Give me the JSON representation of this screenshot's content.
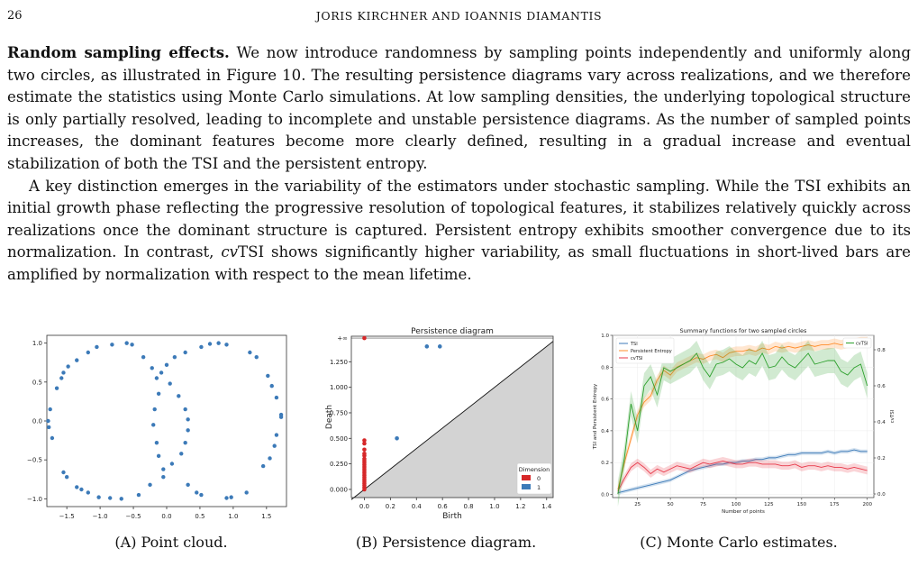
{
  "header": {
    "page_number": "26",
    "running_title": "JORIS KIRCHNER AND IOANNIS DIAMANTIS"
  },
  "body": {
    "paragraph1_runin": "Random sampling effects.",
    "paragraph1_text": " We now introduce randomness by sampling points independently and uniformly along two circles, as illustrated in Figure 10. The resulting persistence diagrams vary across realizations, and we therefore estimate the statistics using Monte Carlo simulations. At low sampling densities, the underlying topological structure is only partially resolved, leading to incomplete and unstable persistence diagrams. As the number of sampled points increases, the dominant features become more clearly defined, resulting in a gradual increase and eventual stabilization of both the TSI and the persistent entropy.",
    "paragraph2_a": "A key distinction emerges in the variability of the estimators under stochastic sampling. While the TSI exhibits an initial growth phase reflecting the progressive resolution of topological features, it stabilizes relatively quickly across realizations once the dominant structure is captured. Persistent entropy exhibits smoother convergence due to its normalization. In contrast, ",
    "paragraph2_em": "cv",
    "paragraph2_b": "TSI shows significantly higher variability, as small fluctuations in short-lived bars are amplified by normalization with respect to the mean lifetime."
  },
  "captions": {
    "a_label": "(A)",
    "a_text": " Point cloud.",
    "b_label": "(B)",
    "b_text": " Persistence diagram.",
    "c_label": "(C)",
    "c_text": " Monte Carlo estimates."
  },
  "chart_data": [
    {
      "type": "scatter",
      "xlim": [
        -1.8,
        1.8
      ],
      "ylim": [
        -1.1,
        1.1
      ],
      "xticks": [
        "−1.5",
        "−1.0",
        "−0.5",
        "0.0",
        "0.5",
        "1.0",
        "1.5"
      ],
      "yticks": [
        "1.0",
        "0.5",
        "0.0",
        "−0.5",
        "−1.0"
      ],
      "grid": false,
      "point_color": "#3c7ab8",
      "points": [
        [
          -1.75,
          0.15
        ],
        [
          -1.78,
          0.0
        ],
        [
          -1.77,
          -0.08
        ],
        [
          -1.72,
          -0.22
        ],
        [
          -1.65,
          0.42
        ],
        [
          -1.58,
          0.55
        ],
        [
          -1.55,
          0.62
        ],
        [
          -1.48,
          0.7
        ],
        [
          -1.35,
          0.78
        ],
        [
          -1.18,
          0.88
        ],
        [
          -1.05,
          0.95
        ],
        [
          -0.82,
          0.98
        ],
        [
          -0.6,
          1.0
        ],
        [
          -0.52,
          0.98
        ],
        [
          -0.35,
          0.82
        ],
        [
          -0.22,
          0.68
        ],
        [
          -0.15,
          0.55
        ],
        [
          -0.12,
          0.35
        ],
        [
          -0.18,
          0.15
        ],
        [
          -0.2,
          -0.05
        ],
        [
          -0.15,
          -0.28
        ],
        [
          -0.12,
          -0.45
        ],
        [
          -0.05,
          -0.62
        ],
        [
          -0.25,
          -0.82
        ],
        [
          -0.42,
          -0.95
        ],
        [
          -0.68,
          -1.0
        ],
        [
          -0.85,
          -0.99
        ],
        [
          -1.02,
          -0.98
        ],
        [
          -1.18,
          -0.92
        ],
        [
          -1.28,
          -0.88
        ],
        [
          -1.35,
          -0.85
        ],
        [
          -1.5,
          -0.72
        ],
        [
          -1.55,
          -0.66
        ],
        [
          0.12,
          0.82
        ],
        [
          0.0,
          0.72
        ],
        [
          -0.08,
          0.62
        ],
        [
          0.05,
          0.48
        ],
        [
          0.18,
          0.32
        ],
        [
          0.28,
          0.15
        ],
        [
          0.32,
          0.02
        ],
        [
          0.32,
          -0.12
        ],
        [
          0.28,
          -0.28
        ],
        [
          0.22,
          -0.42
        ],
        [
          0.08,
          -0.55
        ],
        [
          -0.05,
          -0.72
        ],
        [
          0.32,
          -0.82
        ],
        [
          0.45,
          -0.92
        ],
        [
          0.52,
          -0.95
        ],
        [
          0.9,
          -0.99
        ],
        [
          0.97,
          -0.98
        ],
        [
          1.2,
          -0.92
        ],
        [
          1.45,
          -0.58
        ],
        [
          1.55,
          -0.48
        ],
        [
          1.62,
          -0.32
        ],
        [
          1.65,
          -0.18
        ],
        [
          1.72,
          0.05
        ],
        [
          1.72,
          0.08
        ],
        [
          1.65,
          0.3
        ],
        [
          1.58,
          0.45
        ],
        [
          1.52,
          0.58
        ],
        [
          1.35,
          0.82
        ],
        [
          1.25,
          0.88
        ],
        [
          0.9,
          0.98
        ],
        [
          0.78,
          1.0
        ],
        [
          0.65,
          0.99
        ],
        [
          0.52,
          0.95
        ],
        [
          0.28,
          0.88
        ]
      ]
    },
    {
      "type": "scatter",
      "title": "Persistence diagram",
      "xlabel": "Birth",
      "ylabel": "Death",
      "xlim": [
        -0.1,
        1.45
      ],
      "ylim": [
        -0.08,
        1.5
      ],
      "xticks": [
        "0.0",
        "0.2",
        "0.4",
        "0.6",
        "0.8",
        "1.0",
        "1.2",
        "1.4"
      ],
      "yticks": [
        "+∞",
        "1.250",
        "1.000",
        "0.750",
        "0.500",
        "0.250",
        "0.000"
      ],
      "infinity_label": "+∞",
      "legend_title": "Dimension",
      "legend_position": "bottom-right",
      "series": [
        {
          "name": "0",
          "color": "#d62728",
          "points": [
            [
              0,
              0.0
            ],
            [
              0,
              0.02
            ],
            [
              0,
              0.04
            ],
            [
              0,
              0.06
            ],
            [
              0,
              0.08
            ],
            [
              0,
              0.1
            ],
            [
              0,
              0.12
            ],
            [
              0,
              0.14
            ],
            [
              0,
              0.16
            ],
            [
              0,
              0.18
            ],
            [
              0,
              0.2
            ],
            [
              0,
              0.22
            ],
            [
              0,
              0.24
            ],
            [
              0,
              0.26
            ],
            [
              0,
              0.28
            ],
            [
              0,
              0.3
            ],
            [
              0,
              0.33
            ],
            [
              0,
              0.35
            ],
            [
              0,
              0.39
            ],
            [
              0,
              0.45
            ],
            [
              0,
              0.48
            ]
          ],
          "infinite_points": [
            0.0
          ]
        },
        {
          "name": "1",
          "color": "#3c7ab8",
          "points": [
            [
              0.25,
              0.5
            ],
            [
              0.48,
              1.4
            ],
            [
              0.58,
              1.4
            ]
          ]
        }
      ]
    },
    {
      "type": "line",
      "title": "Summary functions for two sampled circles",
      "xlabel": "Number of points",
      "ylabel": "TSI and Persistent Entropy",
      "ylabel_right": "cvTSI",
      "xlim": [
        6,
        205
      ],
      "ylim": [
        -0.02,
        1.0
      ],
      "ylim_right": [
        -0.02,
        0.88
      ],
      "xticks": [
        "25",
        "50",
        "75",
        "100",
        "125",
        "150",
        "175",
        "200"
      ],
      "yticks": [
        "0.0",
        "0.2",
        "0.4",
        "0.6",
        "0.8",
        "1.0"
      ],
      "yticks_right": [
        "0.0",
        "0.2",
        "0.4",
        "0.6",
        "0.8"
      ],
      "x": [
        10,
        15,
        20,
        25,
        30,
        35,
        40,
        45,
        50,
        55,
        60,
        65,
        70,
        75,
        80,
        85,
        90,
        95,
        100,
        105,
        110,
        115,
        120,
        125,
        130,
        135,
        140,
        145,
        150,
        155,
        160,
        165,
        170,
        175,
        180,
        185,
        190,
        195,
        200
      ],
      "legend_left": [
        "TSI",
        "Persistent Entropy",
        "cvTSI"
      ],
      "legend_right": [
        "cvTSI"
      ],
      "series": [
        {
          "name": "TSI",
          "axis": "left",
          "color": "#3c7ab8",
          "band": 0.012,
          "values": [
            0.01,
            0.02,
            0.03,
            0.04,
            0.05,
            0.06,
            0.07,
            0.08,
            0.09,
            0.11,
            0.13,
            0.15,
            0.16,
            0.17,
            0.18,
            0.19,
            0.19,
            0.2,
            0.2,
            0.21,
            0.21,
            0.22,
            0.22,
            0.23,
            0.23,
            0.24,
            0.25,
            0.25,
            0.26,
            0.26,
            0.26,
            0.26,
            0.27,
            0.26,
            0.27,
            0.27,
            0.28,
            0.27,
            0.27
          ]
        },
        {
          "name": "Persistent Entropy",
          "axis": "left",
          "color": "#ff8c2a",
          "band": 0.03,
          "values": [
            0.03,
            0.2,
            0.35,
            0.5,
            0.58,
            0.62,
            0.72,
            0.78,
            0.75,
            0.8,
            0.82,
            0.84,
            0.86,
            0.85,
            0.87,
            0.88,
            0.86,
            0.89,
            0.9,
            0.9,
            0.91,
            0.9,
            0.92,
            0.91,
            0.93,
            0.92,
            0.93,
            0.92,
            0.93,
            0.94,
            0.93,
            0.94,
            0.94,
            0.95,
            0.94,
            0.95,
            0.95,
            0.96,
            0.96
          ]
        },
        {
          "name": "cvTSI",
          "axis": "left",
          "color": "#e8394a",
          "band": 0.025,
          "values": [
            0.02,
            0.1,
            0.17,
            0.2,
            0.17,
            0.13,
            0.16,
            0.14,
            0.16,
            0.18,
            0.17,
            0.16,
            0.18,
            0.2,
            0.19,
            0.2,
            0.21,
            0.2,
            0.19,
            0.19,
            0.2,
            0.2,
            0.19,
            0.19,
            0.19,
            0.18,
            0.18,
            0.19,
            0.17,
            0.18,
            0.18,
            0.17,
            0.18,
            0.17,
            0.17,
            0.16,
            0.17,
            0.16,
            0.15
          ]
        },
        {
          "name": "cvTSI",
          "axis": "right",
          "color": "#2ca02c",
          "band": 0.07,
          "values": [
            0.0,
            0.2,
            0.5,
            0.35,
            0.6,
            0.65,
            0.55,
            0.7,
            0.68,
            0.7,
            0.72,
            0.74,
            0.78,
            0.7,
            0.65,
            0.72,
            0.73,
            0.75,
            0.72,
            0.7,
            0.74,
            0.72,
            0.78,
            0.7,
            0.71,
            0.76,
            0.72,
            0.7,
            0.74,
            0.78,
            0.72,
            0.73,
            0.74,
            0.74,
            0.68,
            0.66,
            0.7,
            0.72,
            0.6
          ]
        }
      ]
    }
  ]
}
